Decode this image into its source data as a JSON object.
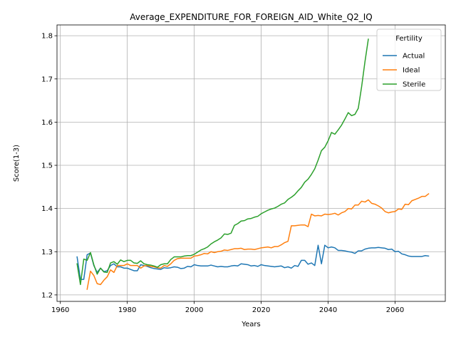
{
  "chart_data": {
    "type": "line",
    "title": "Average_EXPENDITURE_FOR_FOREIGN_AID_White_Q2_IQ",
    "xlabel": "Years",
    "ylabel": "Score(1-3)",
    "xlim": [
      1959,
      2075
    ],
    "ylim": [
      1.185,
      1.825
    ],
    "xticks": [
      1960,
      1980,
      2000,
      2020,
      2040,
      2060
    ],
    "yticks": [
      1.2,
      1.3,
      1.4,
      1.5,
      1.6,
      1.7,
      1.8
    ],
    "grid": true,
    "legend": {
      "title": "Fertility",
      "position": "top-right"
    },
    "series": [
      {
        "name": "Actual",
        "color": "#1f77b4",
        "points": [
          [
            1965,
            1.288
          ],
          [
            1966,
            1.236
          ],
          [
            1967,
            1.236
          ],
          [
            1968,
            1.293
          ],
          [
            1969,
            1.297
          ],
          [
            1970,
            1.268
          ],
          [
            1971,
            1.252
          ],
          [
            1972,
            1.262
          ],
          [
            1973,
            1.254
          ],
          [
            1974,
            1.256
          ],
          [
            1975,
            1.268
          ],
          [
            1976,
            1.272
          ],
          [
            1977,
            1.265
          ],
          [
            1978,
            1.265
          ],
          [
            1979,
            1.262
          ],
          [
            1980,
            1.262
          ],
          [
            1981,
            1.259
          ],
          [
            1982,
            1.256
          ],
          [
            1983,
            1.256
          ],
          [
            1984,
            1.27
          ],
          [
            1985,
            1.268
          ],
          [
            1986,
            1.266
          ],
          [
            1987,
            1.263
          ],
          [
            1988,
            1.261
          ],
          [
            1989,
            1.26
          ],
          [
            1990,
            1.259
          ],
          [
            1991,
            1.263
          ],
          [
            1992,
            1.262
          ],
          [
            1993,
            1.263
          ],
          [
            1994,
            1.265
          ],
          [
            1995,
            1.264
          ],
          [
            1996,
            1.261
          ],
          [
            1997,
            1.262
          ],
          [
            1998,
            1.266
          ],
          [
            1999,
            1.265
          ],
          [
            2000,
            1.27
          ],
          [
            2001,
            1.268
          ],
          [
            2002,
            1.267
          ],
          [
            2003,
            1.267
          ],
          [
            2004,
            1.267
          ],
          [
            2005,
            1.269
          ],
          [
            2006,
            1.267
          ],
          [
            2007,
            1.265
          ],
          [
            2008,
            1.266
          ],
          [
            2009,
            1.265
          ],
          [
            2010,
            1.265
          ],
          [
            2011,
            1.267
          ],
          [
            2012,
            1.268
          ],
          [
            2013,
            1.267
          ],
          [
            2014,
            1.272
          ],
          [
            2015,
            1.271
          ],
          [
            2016,
            1.27
          ],
          [
            2017,
            1.267
          ],
          [
            2018,
            1.268
          ],
          [
            2019,
            1.266
          ],
          [
            2020,
            1.27
          ],
          [
            2021,
            1.268
          ],
          [
            2022,
            1.267
          ],
          [
            2023,
            1.266
          ],
          [
            2024,
            1.265
          ],
          [
            2025,
            1.266
          ],
          [
            2026,
            1.267
          ],
          [
            2027,
            1.263
          ],
          [
            2028,
            1.265
          ],
          [
            2029,
            1.262
          ],
          [
            2030,
            1.268
          ],
          [
            2031,
            1.266
          ],
          [
            2032,
            1.28
          ],
          [
            2033,
            1.28
          ],
          [
            2034,
            1.271
          ],
          [
            2035,
            1.274
          ],
          [
            2036,
            1.268
          ],
          [
            2037,
            1.315
          ],
          [
            2038,
            1.272
          ],
          [
            2039,
            1.315
          ],
          [
            2040,
            1.309
          ],
          [
            2041,
            1.311
          ],
          [
            2042,
            1.309
          ],
          [
            2043,
            1.303
          ],
          [
            2044,
            1.303
          ],
          [
            2045,
            1.302
          ],
          [
            2046,
            1.3
          ],
          [
            2047,
            1.299
          ],
          [
            2048,
            1.296
          ],
          [
            2049,
            1.302
          ],
          [
            2050,
            1.302
          ],
          [
            2051,
            1.306
          ],
          [
            2052,
            1.308
          ],
          [
            2053,
            1.309
          ],
          [
            2054,
            1.309
          ],
          [
            2055,
            1.31
          ],
          [
            2056,
            1.309
          ],
          [
            2057,
            1.308
          ],
          [
            2058,
            1.305
          ],
          [
            2059,
            1.306
          ],
          [
            2060,
            1.3
          ],
          [
            2061,
            1.301
          ],
          [
            2062,
            1.295
          ],
          [
            2063,
            1.293
          ],
          [
            2064,
            1.29
          ],
          [
            2065,
            1.289
          ],
          [
            2066,
            1.289
          ],
          [
            2067,
            1.289
          ],
          [
            2068,
            1.289
          ],
          [
            2069,
            1.291
          ],
          [
            2070,
            1.29
          ]
        ]
      },
      {
        "name": "Ideal",
        "color": "#ff7f0e",
        "points": [
          [
            1968,
            1.213
          ],
          [
            1969,
            1.255
          ],
          [
            1970,
            1.245
          ],
          [
            1971,
            1.226
          ],
          [
            1972,
            1.224
          ],
          [
            1973,
            1.234
          ],
          [
            1974,
            1.242
          ],
          [
            1975,
            1.258
          ],
          [
            1976,
            1.252
          ],
          [
            1977,
            1.268
          ],
          [
            1978,
            1.268
          ],
          [
            1979,
            1.268
          ],
          [
            1980,
            1.272
          ],
          [
            1981,
            1.268
          ],
          [
            1982,
            1.268
          ],
          [
            1983,
            1.268
          ],
          [
            1984,
            1.262
          ],
          [
            1985,
            1.267
          ],
          [
            1986,
            1.268
          ],
          [
            1987,
            1.266
          ],
          [
            1988,
            1.265
          ],
          [
            1989,
            1.263
          ],
          [
            1990,
            1.262
          ],
          [
            1991,
            1.268
          ],
          [
            1992,
            1.266
          ],
          [
            1993,
            1.272
          ],
          [
            1994,
            1.28
          ],
          [
            1995,
            1.284
          ],
          [
            1996,
            1.285
          ],
          [
            1997,
            1.285
          ],
          [
            1998,
            1.285
          ],
          [
            1999,
            1.285
          ],
          [
            2000,
            1.29
          ],
          [
            2001,
            1.291
          ],
          [
            2002,
            1.293
          ],
          [
            2003,
            1.296
          ],
          [
            2004,
            1.295
          ],
          [
            2005,
            1.3
          ],
          [
            2006,
            1.298
          ],
          [
            2007,
            1.3
          ],
          [
            2008,
            1.301
          ],
          [
            2009,
            1.304
          ],
          [
            2010,
            1.303
          ],
          [
            2011,
            1.305
          ],
          [
            2012,
            1.307
          ],
          [
            2013,
            1.307
          ],
          [
            2014,
            1.308
          ],
          [
            2015,
            1.305
          ],
          [
            2016,
            1.306
          ],
          [
            2017,
            1.306
          ],
          [
            2018,
            1.305
          ],
          [
            2019,
            1.307
          ],
          [
            2020,
            1.309
          ],
          [
            2021,
            1.31
          ],
          [
            2022,
            1.311
          ],
          [
            2023,
            1.309
          ],
          [
            2024,
            1.312
          ],
          [
            2025,
            1.312
          ],
          [
            2026,
            1.316
          ],
          [
            2027,
            1.321
          ],
          [
            2028,
            1.324
          ],
          [
            2029,
            1.36
          ],
          [
            2030,
            1.36
          ],
          [
            2031,
            1.361
          ],
          [
            2032,
            1.362
          ],
          [
            2033,
            1.362
          ],
          [
            2034,
            1.358
          ],
          [
            2035,
            1.387
          ],
          [
            2036,
            1.383
          ],
          [
            2037,
            1.384
          ],
          [
            2038,
            1.383
          ],
          [
            2039,
            1.387
          ],
          [
            2040,
            1.386
          ],
          [
            2041,
            1.387
          ],
          [
            2042,
            1.389
          ],
          [
            2043,
            1.385
          ],
          [
            2044,
            1.39
          ],
          [
            2045,
            1.393
          ],
          [
            2046,
            1.4
          ],
          [
            2047,
            1.399
          ],
          [
            2048,
            1.408
          ],
          [
            2049,
            1.408
          ],
          [
            2050,
            1.417
          ],
          [
            2051,
            1.415
          ],
          [
            2052,
            1.42
          ],
          [
            2053,
            1.412
          ],
          [
            2054,
            1.41
          ],
          [
            2055,
            1.406
          ],
          [
            2056,
            1.401
          ],
          [
            2057,
            1.393
          ],
          [
            2058,
            1.39
          ],
          [
            2059,
            1.392
          ],
          [
            2060,
            1.393
          ],
          [
            2061,
            1.399
          ],
          [
            2062,
            1.398
          ],
          [
            2063,
            1.41
          ],
          [
            2064,
            1.409
          ],
          [
            2065,
            1.418
          ],
          [
            2066,
            1.421
          ],
          [
            2067,
            1.424
          ],
          [
            2068,
            1.428
          ],
          [
            2069,
            1.428
          ],
          [
            2070,
            1.434
          ]
        ]
      },
      {
        "name": "Sterile",
        "color": "#2ca02c",
        "points": [
          [
            1965,
            1.272
          ],
          [
            1966,
            1.224
          ],
          [
            1967,
            1.283
          ],
          [
            1968,
            1.28
          ],
          [
            1969,
            1.298
          ],
          [
            1970,
            1.27
          ],
          [
            1971,
            1.248
          ],
          [
            1972,
            1.262
          ],
          [
            1973,
            1.253
          ],
          [
            1974,
            1.252
          ],
          [
            1975,
            1.274
          ],
          [
            1976,
            1.277
          ],
          [
            1977,
            1.271
          ],
          [
            1978,
            1.281
          ],
          [
            1979,
            1.277
          ],
          [
            1980,
            1.28
          ],
          [
            1981,
            1.28
          ],
          [
            1982,
            1.274
          ],
          [
            1983,
            1.273
          ],
          [
            1984,
            1.279
          ],
          [
            1985,
            1.272
          ],
          [
            1986,
            1.27
          ],
          [
            1987,
            1.269
          ],
          [
            1988,
            1.267
          ],
          [
            1989,
            1.264
          ],
          [
            1990,
            1.27
          ],
          [
            1991,
            1.272
          ],
          [
            1992,
            1.272
          ],
          [
            1993,
            1.282
          ],
          [
            1994,
            1.288
          ],
          [
            1995,
            1.288
          ],
          [
            1996,
            1.288
          ],
          [
            1997,
            1.29
          ],
          [
            1998,
            1.291
          ],
          [
            1999,
            1.291
          ],
          [
            2000,
            1.294
          ],
          [
            2001,
            1.299
          ],
          [
            2002,
            1.304
          ],
          [
            2003,
            1.307
          ],
          [
            2004,
            1.311
          ],
          [
            2005,
            1.318
          ],
          [
            2006,
            1.323
          ],
          [
            2007,
            1.327
          ],
          [
            2008,
            1.332
          ],
          [
            2009,
            1.341
          ],
          [
            2010,
            1.34
          ],
          [
            2011,
            1.343
          ],
          [
            2012,
            1.361
          ],
          [
            2013,
            1.365
          ],
          [
            2014,
            1.371
          ],
          [
            2015,
            1.372
          ],
          [
            2016,
            1.376
          ],
          [
            2017,
            1.377
          ],
          [
            2018,
            1.38
          ],
          [
            2019,
            1.382
          ],
          [
            2020,
            1.388
          ],
          [
            2021,
            1.392
          ],
          [
            2022,
            1.396
          ],
          [
            2023,
            1.399
          ],
          [
            2024,
            1.401
          ],
          [
            2025,
            1.405
          ],
          [
            2026,
            1.41
          ],
          [
            2027,
            1.413
          ],
          [
            2028,
            1.421
          ],
          [
            2029,
            1.426
          ],
          [
            2030,
            1.432
          ],
          [
            2031,
            1.441
          ],
          [
            2032,
            1.449
          ],
          [
            2033,
            1.461
          ],
          [
            2034,
            1.468
          ],
          [
            2035,
            1.479
          ],
          [
            2036,
            1.492
          ],
          [
            2037,
            1.512
          ],
          [
            2038,
            1.534
          ],
          [
            2039,
            1.542
          ],
          [
            2040,
            1.557
          ],
          [
            2041,
            1.576
          ],
          [
            2042,
            1.572
          ],
          [
            2043,
            1.582
          ],
          [
            2044,
            1.593
          ],
          [
            2045,
            1.607
          ],
          [
            2046,
            1.622
          ],
          [
            2047,
            1.615
          ],
          [
            2048,
            1.618
          ],
          [
            2049,
            1.632
          ],
          [
            2050,
            1.682
          ],
          [
            2051,
            1.74
          ],
          [
            2052,
            1.792
          ]
        ]
      }
    ]
  }
}
